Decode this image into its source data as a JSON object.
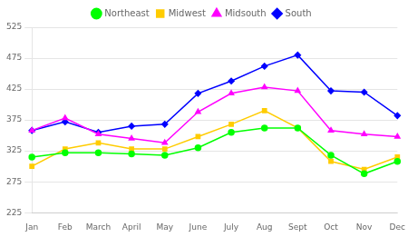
{
  "chart_data": {
    "type": "line",
    "categories": [
      "Jan",
      "Feb",
      "March",
      "April",
      "May",
      "June",
      "July",
      "Aug",
      "Sept",
      "Oct",
      "Nov",
      "Dec"
    ],
    "series": [
      {
        "name": "Northeast",
        "color": "#00ff00",
        "marker": "circle",
        "values": [
          315,
          322,
          322,
          320,
          318,
          330,
          355,
          362,
          362,
          318,
          288,
          308
        ]
      },
      {
        "name": "Midwest",
        "color": "#ffcc00",
        "marker": "square",
        "values": [
          300,
          328,
          338,
          328,
          328,
          348,
          368,
          390,
          362,
          308,
          295,
          315
        ]
      },
      {
        "name": "Midsouth",
        "color": "#ff00ff",
        "marker": "triangle",
        "values": [
          358,
          378,
          352,
          345,
          338,
          388,
          418,
          428,
          422,
          358,
          352,
          348
        ]
      },
      {
        "name": "South",
        "color": "#0000ff",
        "marker": "diamond",
        "values": [
          358,
          372,
          355,
          365,
          368,
          418,
          438,
          462,
          480,
          422,
          420,
          382
        ]
      }
    ],
    "ylim": [
      225,
      525
    ],
    "yticks": [
      225,
      275,
      325,
      375,
      425,
      475,
      525
    ],
    "grid": "y",
    "legend": "top"
  }
}
